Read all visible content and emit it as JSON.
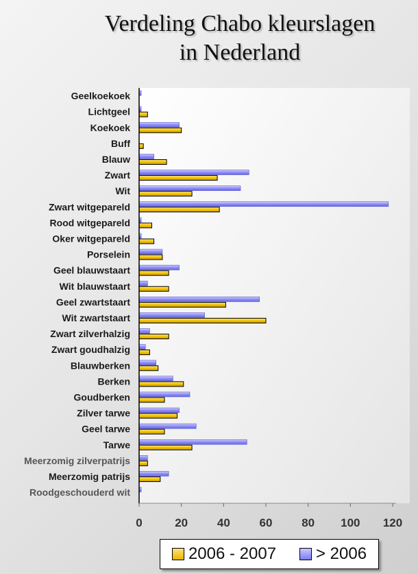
{
  "title": {
    "line1": "Verdeling Chabo kleurslagen",
    "line2": "in Nederland"
  },
  "chart_data": {
    "type": "bar",
    "orientation": "horizontal",
    "categories": [
      "Geelkoekoek",
      "Lichtgeel",
      "Koekoek",
      "Buff",
      "Blauw",
      "Zwart",
      "Wit",
      "Zwart witgepareld",
      "Rood witgepareld",
      "Oker witgepareld",
      "Porselein",
      "Geel blauwstaart",
      "Wit blauwstaart",
      "Geel zwartstaart",
      "Wit zwartstaart",
      "Zwart zilverhalzig",
      "Zwart goudhalzig",
      "Blauwberken",
      "Berken",
      "Goudberken",
      "Zilver tarwe",
      "Geel tarwe",
      "Tarwe",
      "Meerzomig zilverpatrijs",
      "Meerzomig patrijs",
      "Roodgeschouderd wit"
    ],
    "series": [
      {
        "name": "2006 - 2007",
        "color": "#f0c000",
        "values": [
          0,
          4,
          20,
          2,
          13,
          37,
          25,
          38,
          6,
          7,
          11,
          14,
          14,
          41,
          60,
          14,
          5,
          9,
          21,
          12,
          18,
          12,
          25,
          4,
          10,
          0
        ]
      },
      {
        "name": "> 2006",
        "color": "#8a8af5",
        "values": [
          1,
          1,
          19,
          0,
          7,
          52,
          48,
          118,
          1,
          1,
          11,
          19,
          4,
          57,
          31,
          5,
          3,
          8,
          16,
          24,
          19,
          27,
          51,
          4,
          14,
          1
        ]
      }
    ],
    "xlim": [
      0,
      120
    ],
    "xticks": [
      "0",
      "20",
      "40",
      "60",
      "80",
      "100",
      "120"
    ],
    "grid": false,
    "legend_position": "bottom"
  }
}
